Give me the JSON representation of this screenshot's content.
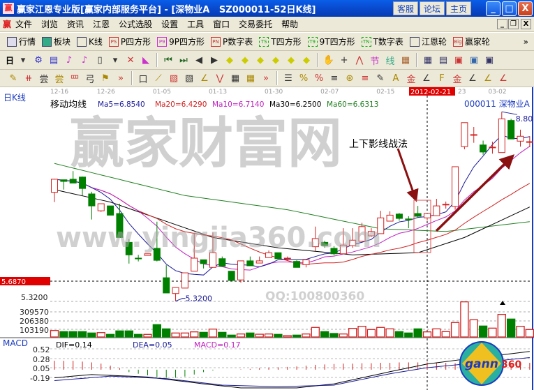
{
  "window": {
    "title": "赢家江恩专业版[赢家内部服务平台] - [深物业A   SZ000011-52日K线]",
    "logo": "赢",
    "buttons": [
      "客服",
      "论坛",
      "主页"
    ],
    "controls": [
      "_",
      "□",
      "X"
    ]
  },
  "menu": {
    "logo": "赢",
    "items": [
      "文件",
      "浏览",
      "资讯",
      "江恩",
      "公式选股",
      "设置",
      "工具",
      "窗口",
      "交易委托",
      "帮助"
    ],
    "mdi": [
      "_",
      "❐",
      "X"
    ]
  },
  "toolbar1": [
    {
      "label": "行情",
      "icon": "grid-icon"
    },
    {
      "label": "板块",
      "icon": "blocks-icon"
    },
    {
      "label": "K线",
      "icon": "candles-icon"
    },
    {
      "label": "P四方形",
      "icon": "PS"
    },
    {
      "label": "9P四方形",
      "icon": "P9"
    },
    {
      "label": "P数字表",
      "icon": "PN"
    },
    {
      "label": "T四方形",
      "icon": "TS"
    },
    {
      "label": "9T四方形",
      "icon": "T9"
    },
    {
      "label": "T数字表",
      "icon": "TN"
    },
    {
      "label": "江恩轮",
      "icon": "wheel-icon"
    },
    {
      "label": "赢家轮",
      "icon": "Big"
    }
  ],
  "toolbar2": {
    "period": "日",
    "icons": [
      "▾",
      "⚙",
      "▤",
      "♪",
      "♪",
      "▯",
      "▾",
      "✕",
      "◣",
      "⏮",
      "⏭",
      "◀",
      "▶",
      "◆",
      "◆",
      "◆",
      "◆",
      "◆",
      "◆",
      "✋",
      "+",
      "⋀",
      "节",
      "线",
      "▦",
      "▦",
      "▤",
      "▣",
      "▣",
      "▣"
    ]
  },
  "toolbar3": {
    "icons": [
      "✎",
      "⧺",
      "尝",
      "尝",
      "罒",
      "弓",
      "⚑",
      "»",
      "口",
      "⟋",
      "▧",
      "▧",
      "∠",
      "⋁",
      "▦",
      "▦",
      "»",
      "☰",
      "%",
      "%",
      "≡",
      "⊛",
      "≡",
      "✎",
      "A",
      "金",
      "∠",
      "F",
      "金",
      "∠",
      "∠",
      "∠"
    ]
  },
  "chart": {
    "period_label": "日K线",
    "dates": [
      "12-16",
      "12-26",
      "01-05",
      "01-13",
      "01-30",
      "02-07",
      "02-15",
      "03-02"
    ],
    "date_tick_index": [
      0,
      5,
      11,
      17,
      23,
      29,
      35,
      47
    ],
    "cursor_date": "2012-02-21",
    "cursor_date_partial": "23",
    "cursor_index": 40,
    "ma_title": "移动均线",
    "ma": [
      {
        "label": "Ma5=6.8540",
        "color": "#1a1a9a"
      },
      {
        "label": "Ma20=6.4290",
        "color": "#d02020"
      },
      {
        "label": "Ma10=6.7140",
        "color": "#c020c0"
      },
      {
        "label": "Ma30=6.2500",
        "color": "#000000"
      },
      {
        "label": "Ma60=6.6313",
        "color": "#208020"
      }
    ],
    "stock": "000011 深物业A",
    "price_marker": "5.6870",
    "price_labels": [
      "5.3200"
    ],
    "low_label": "5.3200",
    "high_label": "8.80",
    "annotation": "上下影线战法",
    "candles": [
      [
        7.32,
        7.56,
        7.14,
        7.56
      ],
      [
        7.55,
        7.55,
        7.37,
        7.52
      ],
      [
        7.56,
        7.71,
        7.49,
        7.49
      ],
      [
        7.6,
        7.61,
        7.26,
        7.39
      ],
      [
        7.29,
        7.33,
        6.82,
        7.07
      ],
      [
        6.98,
        7.11,
        6.96,
        7.11
      ],
      [
        7.07,
        7.07,
        6.9,
        6.9
      ],
      [
        6.93,
        7.11,
        6.49,
        6.49
      ],
      [
        6.4,
        6.46,
        6.01,
        6.17
      ],
      [
        6.11,
        6.17,
        6.05,
        6.1
      ],
      [
        6.16,
        6.19,
        6.16,
        6.19
      ],
      [
        6.29,
        6.78,
        6.05,
        6.07
      ],
      [
        5.75,
        5.98,
        5.47,
        5.47
      ],
      [
        5.46,
        5.57,
        5.32,
        5.57
      ],
      [
        5.56,
        5.84,
        5.56,
        5.84
      ],
      [
        5.87,
        6.56,
        5.87,
        6.11
      ],
      [
        6.08,
        6.08,
        5.92,
        6.01
      ],
      [
        5.94,
        6.58,
        5.94,
        6.21
      ],
      [
        6.1,
        6.14,
        5.96,
        5.96
      ],
      [
        5.87,
        5.87,
        5.7,
        5.7
      ],
      [
        5.71,
        6.06,
        5.66,
        6.06
      ],
      [
        6.06,
        6.14,
        5.97,
        5.97
      ],
      [
        6.02,
        6.14,
        6.02,
        6.06
      ],
      [
        6.12,
        6.25,
        6.12,
        6.21
      ],
      [
        6.21,
        6.21,
        6.1,
        6.1
      ],
      [
        6.1,
        6.14,
        6.06,
        6.11
      ],
      [
        6.05,
        6.07,
        5.94,
        5.94
      ],
      [
        5.99,
        6.09,
        5.94,
        6.08
      ],
      [
        6.32,
        6.69,
        6.24,
        6.47
      ],
      [
        6.4,
        6.43,
        6.3,
        6.34
      ],
      [
        6.29,
        6.33,
        6.16,
        6.19
      ],
      [
        6.19,
        6.66,
        6.19,
        6.35
      ],
      [
        6.34,
        6.66,
        6.3,
        6.44
      ],
      [
        6.42,
        6.76,
        6.42,
        6.69
      ],
      [
        6.52,
        6.66,
        6.5,
        6.6
      ],
      [
        6.56,
        6.98,
        6.56,
        6.85
      ],
      [
        6.79,
        6.97,
        6.79,
        6.9
      ],
      [
        6.92,
        6.94,
        6.8,
        6.84
      ],
      [
        6.83,
        6.88,
        6.66,
        6.82
      ],
      [
        6.93,
        7.07,
        6.86,
        6.88
      ],
      [
        6.85,
        6.93,
        6.8,
        6.93
      ],
      [
        6.89,
        7.2,
        6.89,
        7.07
      ],
      [
        7.1,
        7.15,
        7.02,
        7.1
      ],
      [
        7.06,
        7.79,
        7.0,
        7.79
      ],
      [
        8.16,
        8.6,
        8.11,
        8.6
      ],
      [
        8.38,
        8.52,
        8.23,
        8.38
      ],
      [
        8.19,
        8.27,
        8.01,
        8.06
      ],
      [
        8.15,
        8.25,
        8.03,
        8.15
      ],
      [
        8.05,
        8.8,
        8.05,
        8.67
      ],
      [
        8.64,
        8.67,
        8.3,
        8.3
      ],
      [
        8.26,
        8.47,
        8.16,
        8.35
      ],
      [
        8.25,
        8.35,
        8.15,
        8.25
      ]
    ],
    "ma30_points": [
      [
        0,
        7.37
      ],
      [
        6,
        7.14
      ],
      [
        17,
        6.49
      ],
      [
        24,
        6.3
      ],
      [
        32,
        6.17
      ],
      [
        39,
        6.21
      ],
      [
        44,
        6.49
      ],
      [
        51,
        7.05
      ]
    ],
    "ma60_points": [
      [
        0,
        7.85
      ],
      [
        14,
        7.26
      ],
      [
        25,
        7.0
      ],
      [
        35,
        6.65
      ],
      [
        42,
        6.6
      ],
      [
        51,
        6.78
      ]
    ],
    "volume_labels": [
      "309570",
      "206380",
      "103190"
    ],
    "volume": [
      80,
      66,
      66,
      66,
      49,
      54,
      32,
      75,
      75,
      32,
      32,
      152,
      100,
      49,
      49,
      63,
      57,
      97,
      57,
      23,
      37,
      49,
      34,
      37,
      32,
      17,
      23,
      37,
      118,
      66,
      43,
      37,
      106,
      132,
      92,
      118,
      100,
      66,
      49,
      100,
      63,
      100,
      66,
      178,
      433,
      212,
      135,
      109,
      278,
      221,
      132,
      92
    ],
    "macd_title": "MACD",
    "macd_values": [
      "DIF=0.14",
      "DEA=0.05",
      "MACD=0.17"
    ],
    "macd_labels": [
      "0.52",
      "0.28",
      "0.05",
      "-0.19"
    ],
    "macd_hist": [
      0.22,
      0.22,
      0.22,
      0.2,
      0.18,
      0.15,
      0.1,
      0.04,
      -0.06,
      -0.1,
      -0.14,
      -0.18,
      -0.2,
      -0.2,
      -0.17,
      -0.12,
      -0.06,
      -0.02,
      0,
      0,
      0.01,
      0.02,
      0.04,
      0.05,
      0.06,
      0.07,
      0.08,
      0.1,
      0.12,
      0.13,
      0.14,
      0.15,
      0.15,
      0.16,
      0.16,
      0.17,
      0.17,
      0.18,
      0.18,
      0.18,
      0.18,
      0.17,
      0.17,
      0.16,
      0.16,
      0.15,
      0.16,
      0.17,
      0.17,
      0.17,
      0.18,
      0.17
    ],
    "dif_points": [
      [
        0,
        -0.2
      ],
      [
        4,
        -0.12
      ],
      [
        10,
        -0.18
      ],
      [
        16,
        -0.35
      ],
      [
        20,
        -0.45
      ],
      [
        26,
        -0.45
      ],
      [
        30,
        -0.35
      ],
      [
        36,
        -0.05
      ],
      [
        40,
        0.14
      ],
      [
        44,
        0.26
      ],
      [
        51,
        0.45
      ]
    ],
    "dea_points": [
      [
        0,
        -0.27
      ],
      [
        6,
        -0.16
      ],
      [
        12,
        -0.22
      ],
      [
        18,
        -0.38
      ],
      [
        24,
        -0.42
      ],
      [
        30,
        -0.38
      ],
      [
        36,
        -0.1
      ],
      [
        40,
        0.05
      ],
      [
        44,
        0.14
      ],
      [
        51,
        0.3
      ]
    ],
    "colors": {
      "up": "#d42020",
      "down": "#008000",
      "ma5": "#1a1a9a",
      "ma10": "#c020c0",
      "ma20": "#d02020",
      "ma30": "#000000",
      "ma60": "#208020",
      "arrow": "#8b1010"
    }
  },
  "watermarks": {
    "big": "赢家财富网",
    "url": "www.yingjia360.com",
    "qq": "QQ:100800360"
  },
  "logo": {
    "text": "gann",
    "num": "360"
  }
}
